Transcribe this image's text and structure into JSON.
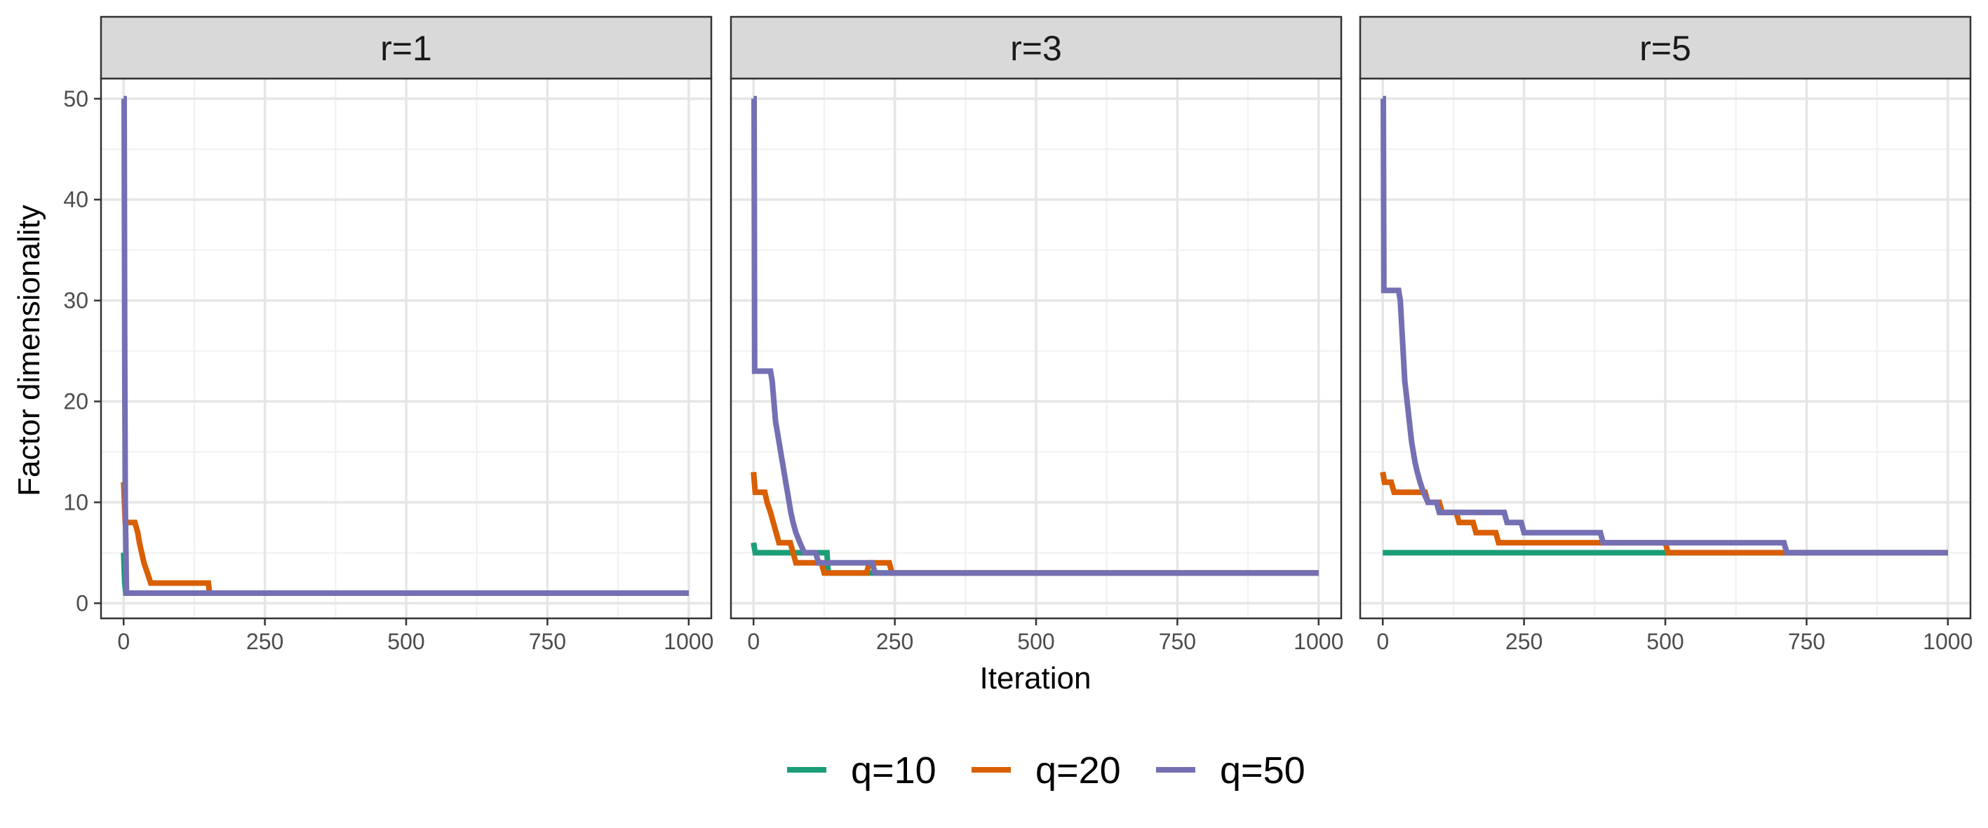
{
  "chart_data": {
    "type": "line",
    "xlabel": "Iteration",
    "ylabel": "Factor dimensionality",
    "xlim": [
      -40,
      1040
    ],
    "ylim": [
      -1.5,
      52
    ],
    "x_ticks": [
      0,
      250,
      500,
      750,
      1000
    ],
    "y_ticks": [
      0,
      10,
      20,
      30,
      40,
      50
    ],
    "grid": true,
    "legend_position": "bottom",
    "legend": [
      "q=10",
      "q=20",
      "q=50"
    ],
    "colors": {
      "q=10": "#1b9e77",
      "q=20": "#d95f02",
      "q=50": "#7570b3"
    },
    "panels": [
      {
        "label": "r=1",
        "series": [
          {
            "name": "q=10",
            "points": [
              [
                0,
                5
              ],
              [
                2,
                2
              ],
              [
                4,
                1
              ],
              [
                1000,
                1
              ]
            ]
          },
          {
            "name": "q=20",
            "points": [
              [
                0,
                12
              ],
              [
                3,
                8
              ],
              [
                20,
                8
              ],
              [
                25,
                7
              ],
              [
                28,
                6
              ],
              [
                32,
                5
              ],
              [
                36,
                4
              ],
              [
                42,
                3
              ],
              [
                48,
                2
              ],
              [
                150,
                2
              ],
              [
                152,
                1
              ],
              [
                1000,
                1
              ]
            ]
          },
          {
            "name": "q=50",
            "points": [
              [
                0,
                50
              ],
              [
                1,
                50
              ],
              [
                2,
                25
              ],
              [
                3,
                10
              ],
              [
                5,
                1
              ],
              [
                1000,
                1
              ]
            ]
          }
        ]
      },
      {
        "label": "r=3",
        "series": [
          {
            "name": "q=10",
            "points": [
              [
                0,
                6
              ],
              [
                3,
                5
              ],
              [
                130,
                5
              ],
              [
                132,
                3
              ],
              [
                1000,
                3
              ]
            ]
          },
          {
            "name": "q=20",
            "points": [
              [
                0,
                13
              ],
              [
                3,
                11
              ],
              [
                20,
                11
              ],
              [
                24,
                10
              ],
              [
                30,
                9
              ],
              [
                35,
                8
              ],
              [
                40,
                7
              ],
              [
                45,
                6
              ],
              [
                65,
                6
              ],
              [
                70,
                5
              ],
              [
                75,
                4
              ],
              [
                120,
                4
              ],
              [
                125,
                3
              ],
              [
                200,
                3
              ],
              [
                205,
                4
              ],
              [
                240,
                4
              ],
              [
                245,
                3
              ],
              [
                1000,
                3
              ]
            ]
          },
          {
            "name": "q=50",
            "points": [
              [
                0,
                50
              ],
              [
                1,
                50
              ],
              [
                2,
                23
              ],
              [
                30,
                23
              ],
              [
                33,
                22
              ],
              [
                36,
                20
              ],
              [
                39,
                18
              ],
              [
                42,
                17
              ],
              [
                45,
                16
              ],
              [
                48,
                15
              ],
              [
                51,
                14
              ],
              [
                54,
                13
              ],
              [
                57,
                12
              ],
              [
                60,
                11
              ],
              [
                63,
                10
              ],
              [
                66,
                9
              ],
              [
                70,
                8
              ],
              [
                75,
                7
              ],
              [
                82,
                6
              ],
              [
                90,
                5
              ],
              [
                110,
                5
              ],
              [
                115,
                4
              ],
              [
                210,
                4
              ],
              [
                215,
                3
              ],
              [
                1000,
                3
              ]
            ]
          }
        ]
      },
      {
        "label": "r=5",
        "series": [
          {
            "name": "q=10",
            "points": [
              [
                0,
                5
              ],
              [
                1000,
                5
              ]
            ]
          },
          {
            "name": "q=20",
            "points": [
              [
                0,
                13
              ],
              [
                3,
                12
              ],
              [
                15,
                12
              ],
              [
                20,
                11
              ],
              [
                75,
                11
              ],
              [
                80,
                10
              ],
              [
                100,
                10
              ],
              [
                105,
                9
              ],
              [
                130,
                9
              ],
              [
                135,
                8
              ],
              [
                160,
                8
              ],
              [
                165,
                7
              ],
              [
                200,
                7
              ],
              [
                205,
                6
              ],
              [
                500,
                6
              ],
              [
                505,
                5
              ],
              [
                1000,
                5
              ]
            ]
          },
          {
            "name": "q=50",
            "points": [
              [
                0,
                50
              ],
              [
                1,
                50
              ],
              [
                2,
                31
              ],
              [
                28,
                31
              ],
              [
                31,
                30
              ],
              [
                33,
                28
              ],
              [
                35,
                26
              ],
              [
                37,
                24
              ],
              [
                39,
                22
              ],
              [
                41,
                21
              ],
              [
                43,
                20
              ],
              [
                45,
                19
              ],
              [
                47,
                18
              ],
              [
                49,
                17
              ],
              [
                51,
                16
              ],
              [
                54,
                15
              ],
              [
                57,
                14
              ],
              [
                61,
                13
              ],
              [
                66,
                12
              ],
              [
                72,
                11
              ],
              [
                80,
                10
              ],
              [
                90,
                10
              ],
              [
                95,
                10
              ],
              [
                100,
                9
              ],
              [
                145,
                9
              ],
              [
                150,
                9
              ],
              [
                215,
                9
              ],
              [
                220,
                8
              ],
              [
                245,
                8
              ],
              [
                250,
                7
              ],
              [
                385,
                7
              ],
              [
                390,
                6
              ],
              [
                710,
                6
              ],
              [
                715,
                5
              ],
              [
                1000,
                5
              ]
            ]
          }
        ]
      }
    ]
  }
}
